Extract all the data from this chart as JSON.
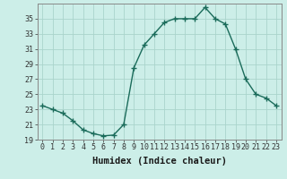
{
  "x": [
    0,
    1,
    2,
    3,
    4,
    5,
    6,
    7,
    8,
    9,
    10,
    11,
    12,
    13,
    14,
    15,
    16,
    17,
    18,
    19,
    20,
    21,
    22,
    23
  ],
  "y": [
    23.5,
    23.0,
    22.5,
    21.5,
    20.3,
    19.8,
    19.5,
    19.6,
    21.0,
    28.5,
    31.5,
    33.0,
    34.5,
    35.0,
    35.0,
    35.0,
    36.5,
    35.0,
    34.3,
    31.0,
    27.0,
    25.0,
    24.5,
    23.5
  ],
  "line_color": "#1a6b5a",
  "marker": "+",
  "marker_size": 4,
  "marker_linewidth": 1.0,
  "bg_color": "#cceee8",
  "grid_color": "#aad4cc",
  "xlabel": "Humidex (Indice chaleur)",
  "ylim": [
    19,
    37
  ],
  "xlim": [
    -0.5,
    23.5
  ],
  "yticks": [
    19,
    21,
    23,
    25,
    27,
    29,
    31,
    33,
    35
  ],
  "xticks": [
    0,
    1,
    2,
    3,
    4,
    5,
    6,
    7,
    8,
    9,
    10,
    11,
    12,
    13,
    14,
    15,
    16,
    17,
    18,
    19,
    20,
    21,
    22,
    23
  ],
  "tick_fontsize": 6,
  "xlabel_fontsize": 7.5,
  "line_width": 1.0
}
